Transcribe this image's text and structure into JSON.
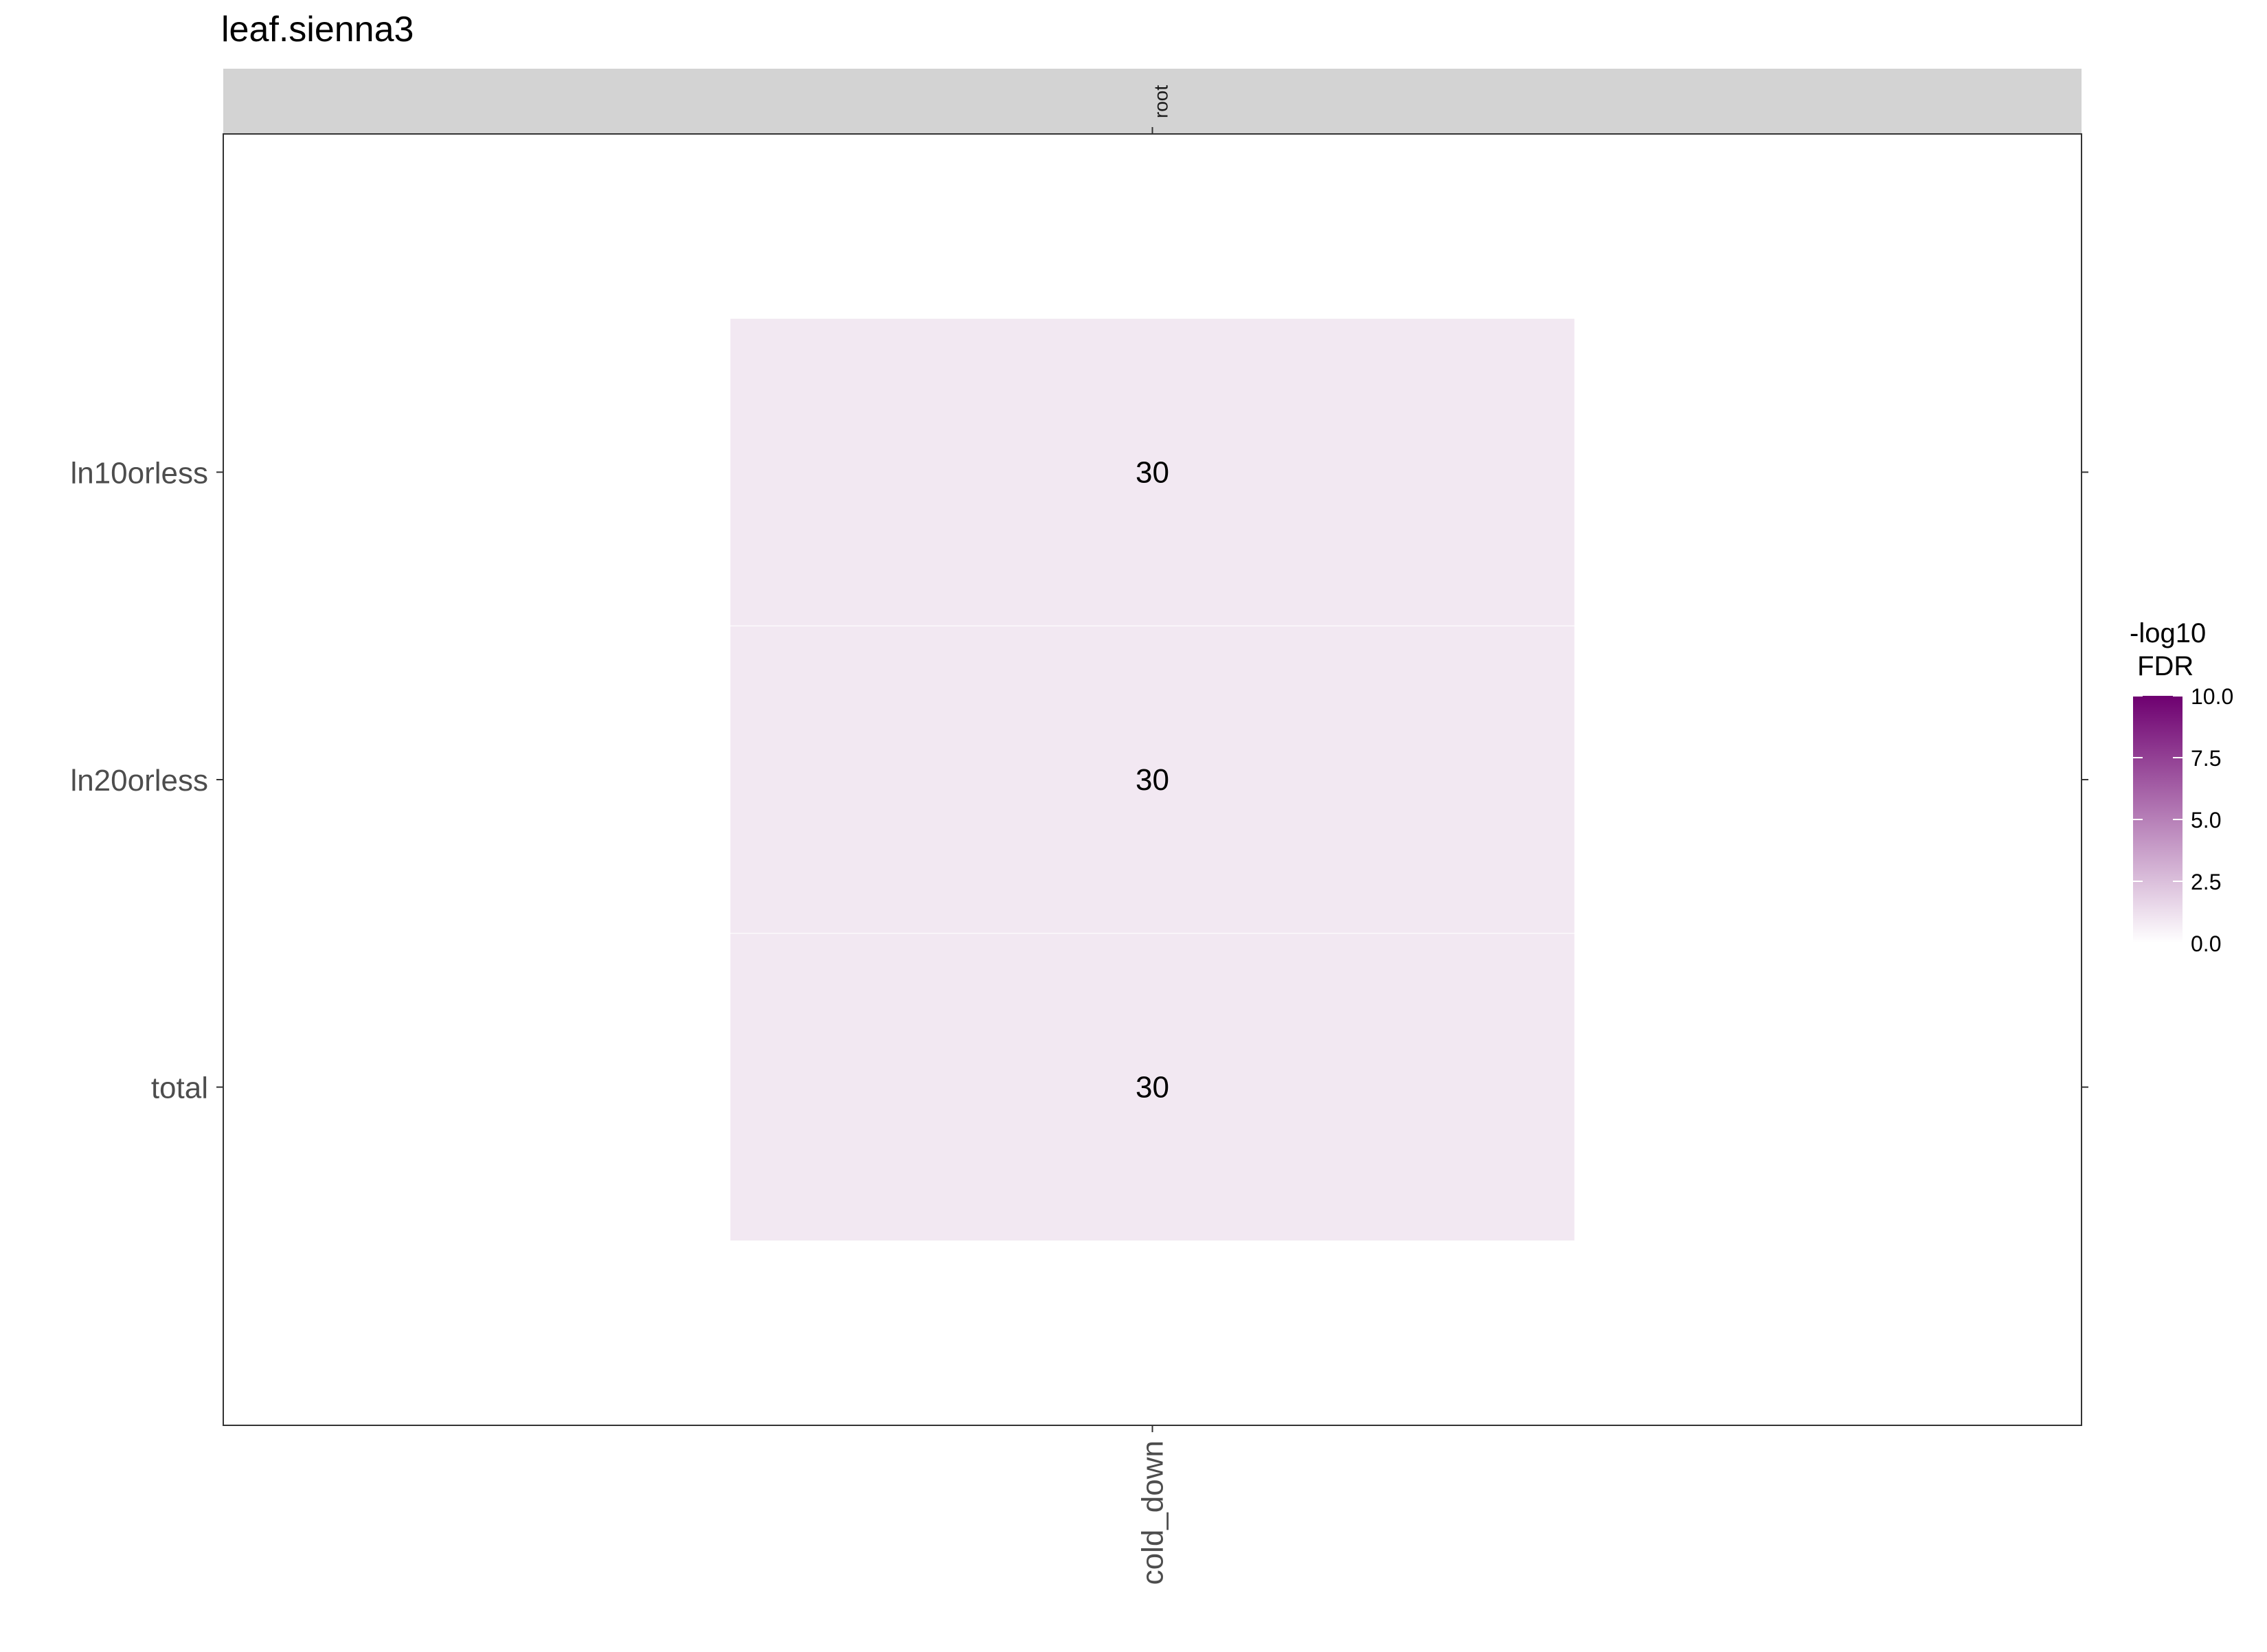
{
  "chart_data": {
    "type": "heatmap",
    "title": "leaf.sienna3",
    "facet_label": "root",
    "x_categories": [
      "cold_down"
    ],
    "y_categories": [
      "ln10orless",
      "ln20orless",
      "total"
    ],
    "cells": [
      {
        "x": "cold_down",
        "y": "ln10orless",
        "label": "30",
        "value": 0.9
      },
      {
        "x": "cold_down",
        "y": "ln20orless",
        "label": "30",
        "value": 0.9
      },
      {
        "x": "cold_down",
        "y": "total",
        "label": "30",
        "value": 0.9
      }
    ],
    "legend": {
      "title_line1": "-log10",
      "title_line2": " FDR",
      "min": 0,
      "max": 10,
      "ticks": [
        "0.0",
        "2.5",
        "5.0",
        "7.5",
        "10.0"
      ],
      "tick_values": [
        0,
        2.5,
        5,
        7.5,
        10
      ],
      "low_color": "#ffffff",
      "high_color": "#6e0070",
      "placement": "right"
    },
    "colors": {
      "strip_fill": "#d3d3d3",
      "panel_border": "#333333",
      "cell_border": "#ffffff"
    }
  }
}
